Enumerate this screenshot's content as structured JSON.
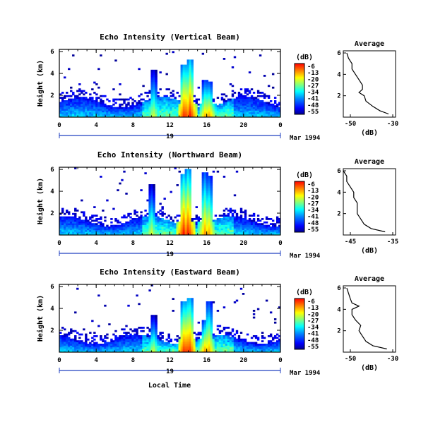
{
  "x_axis_label": "Local Time",
  "panels": [
    {
      "title": "Echo Intensity (Vertical Beam)",
      "ylabel": "Height (km)",
      "x_ticks": [
        "0",
        "4",
        "8",
        "12",
        "16",
        "20",
        "0"
      ],
      "y_ticks": [
        "6",
        "4",
        "2"
      ],
      "day_label": "19",
      "date_label": "Mar 1994",
      "colorbar_label": "(dB)",
      "colorbar_ticks": [
        "-6",
        "-13",
        "-20",
        "-27",
        "-34",
        "-41",
        "-48",
        "-55"
      ],
      "avg_title": "Average",
      "avg_xlabel": "(dB)",
      "avg_x_ticks": [
        "-50",
        "-30"
      ],
      "avg_y_ticks": [
        "6",
        "4",
        "2"
      ]
    },
    {
      "title": "Echo Intensity (Northward Beam)",
      "ylabel": "Height (km)",
      "x_ticks": [
        "0",
        "4",
        "8",
        "12",
        "16",
        "20",
        "0"
      ],
      "y_ticks": [
        "6",
        "4",
        "2"
      ],
      "day_label": "19",
      "date_label": "Mar 1994",
      "colorbar_label": "(dB)",
      "colorbar_ticks": [
        "-6",
        "-13",
        "-20",
        "-27",
        "-34",
        "-41",
        "-48",
        "-55"
      ],
      "avg_title": "Average",
      "avg_xlabel": "(dB)",
      "avg_x_ticks": [
        "-45",
        "-35"
      ],
      "avg_y_ticks": [
        "6",
        "4",
        "2"
      ]
    },
    {
      "title": "Echo Intensity (Eastward Beam)",
      "ylabel": "Height (km)",
      "x_ticks": [
        "0",
        "4",
        "8",
        "12",
        "16",
        "20",
        "0"
      ],
      "y_ticks": [
        "6",
        "4",
        "2"
      ],
      "day_label": "19",
      "date_label": "Mar 1994",
      "colorbar_label": "(dB)",
      "colorbar_ticks": [
        "-6",
        "-13",
        "-20",
        "-27",
        "-34",
        "-41",
        "-48",
        "-55"
      ],
      "avg_title": "Average",
      "avg_xlabel": "(dB)",
      "avg_x_ticks": [
        "-50",
        "-30"
      ],
      "avg_y_ticks": [
        "6",
        "4",
        "2"
      ]
    }
  ],
  "chart_data": [
    {
      "type": "heatmap",
      "title": "Echo Intensity (Vertical Beam)",
      "xlabel": "Local Time",
      "ylabel": "Height (km)",
      "xlim": [
        0,
        24
      ],
      "ylim": [
        0,
        6.2
      ],
      "zlim": [
        -55,
        -6
      ],
      "zlabel": "(dB)",
      "boundary_layer_top_km": 1.6,
      "convective_plumes": [
        {
          "time_h": 10.2,
          "top_km": 4.4,
          "peak_db": -20
        },
        {
          "time_h": 13.6,
          "top_km": 4.8,
          "peak_db": -6
        },
        {
          "time_h": 14.2,
          "top_km": 5.2,
          "peak_db": -6
        },
        {
          "time_h": 15.9,
          "top_km": 3.4,
          "peak_db": -13
        },
        {
          "time_h": 16.3,
          "top_km": 3.2,
          "peak_db": -13
        }
      ],
      "average_profile": {
        "xlim": [
          -55,
          -25
        ],
        "height_km": [
          6.0,
          5.5,
          5.0,
          4.5,
          4.0,
          3.5,
          3.0,
          2.6,
          2.3,
          2.0,
          1.5,
          1.0,
          0.6,
          0.3
        ],
        "db": [
          -53,
          -52,
          -50,
          -50,
          -48,
          -46,
          -44,
          -44,
          -46,
          -43,
          -42,
          -38,
          -34,
          -29
        ]
      }
    },
    {
      "type": "heatmap",
      "title": "Echo Intensity (Northward Beam)",
      "xlabel": "Local Time",
      "ylabel": "Height (km)",
      "xlim": [
        0,
        24
      ],
      "ylim": [
        0,
        6.2
      ],
      "zlim": [
        -55,
        -6
      ],
      "zlabel": "(dB)",
      "boundary_layer_top_km": 1.5,
      "convective_plumes": [
        {
          "time_h": 10.0,
          "top_km": 4.6,
          "peak_db": -20
        },
        {
          "time_h": 13.5,
          "top_km": 5.6,
          "peak_db": -6
        },
        {
          "time_h": 14.0,
          "top_km": 6.0,
          "peak_db": -6
        },
        {
          "time_h": 15.8,
          "top_km": 5.8,
          "peak_db": -13
        },
        {
          "time_h": 16.2,
          "top_km": 5.4,
          "peak_db": -13
        }
      ],
      "average_profile": {
        "xlim": [
          -48,
          -33
        ],
        "height_km": [
          6.0,
          5.5,
          5.0,
          4.5,
          4.0,
          3.5,
          3.0,
          2.5,
          2.0,
          1.5,
          1.0,
          0.6,
          0.3
        ],
        "db": [
          -48,
          -47,
          -47,
          -46,
          -45,
          -45,
          -44,
          -44,
          -44,
          -43,
          -42,
          -40,
          -36
        ]
      }
    },
    {
      "type": "heatmap",
      "title": "Echo Intensity (Eastward Beam)",
      "xlabel": "Local Time",
      "ylabel": "Height (km)",
      "xlim": [
        0,
        24
      ],
      "ylim": [
        0,
        6.2
      ],
      "zlim": [
        -55,
        -6
      ],
      "zlabel": "(dB)",
      "boundary_layer_top_km": 1.4,
      "convective_plumes": [
        {
          "time_h": 10.2,
          "top_km": 3.4,
          "peak_db": -20
        },
        {
          "time_h": 13.6,
          "top_km": 4.6,
          "peak_db": -6
        },
        {
          "time_h": 14.1,
          "top_km": 5.0,
          "peak_db": -6
        },
        {
          "time_h": 15.8,
          "top_km": 3.0,
          "peak_db": -13
        },
        {
          "time_h": 16.2,
          "top_km": 4.6,
          "peak_db": -13
        }
      ],
      "average_profile": {
        "xlim": [
          -55,
          -25
        ],
        "height_km": [
          6.0,
          5.5,
          5.0,
          4.6,
          4.3,
          4.0,
          3.5,
          3.0,
          2.5,
          2.0,
          1.5,
          1.0,
          0.6,
          0.3
        ],
        "db": [
          -53,
          -52,
          -51,
          -50,
          -46,
          -50,
          -50,
          -48,
          -45,
          -46,
          -44,
          -42,
          -38,
          -30
        ]
      }
    }
  ]
}
